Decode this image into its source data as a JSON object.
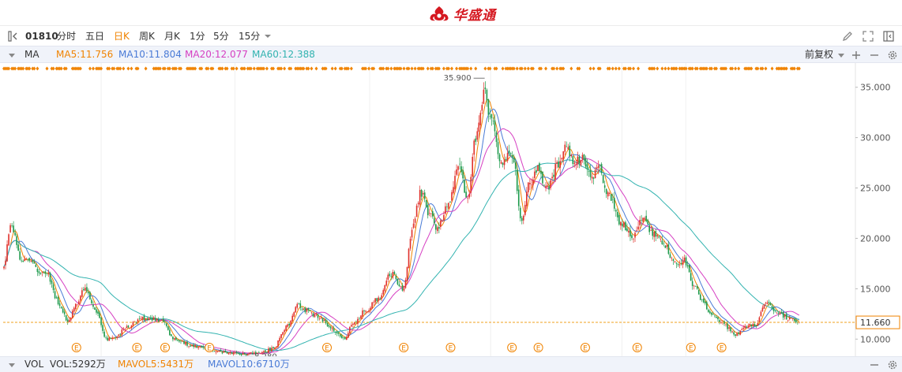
{
  "brand": {
    "name": "华盛通",
    "logo_icon": "flame-logo-icon",
    "color": "#d51820"
  },
  "toolbar": {
    "code": "01810",
    "periods": [
      "分时",
      "五日",
      "日K",
      "周K",
      "月K",
      "1分",
      "5分",
      "15分"
    ],
    "active_period": "日K",
    "icons": [
      "sidebar-toggle-icon",
      "draw-pen-icon",
      "fullscreen-icon",
      "panel-icon",
      "dropdown-caret-icon"
    ]
  },
  "ma_bar": {
    "label": "MA",
    "ma5": "MA5:11.756",
    "ma10": "MA10:11.804",
    "ma20": "MA20:12.077",
    "ma60": "MA60:12.388",
    "adjust": "前复权",
    "colors": {
      "ma5": "#f08300",
      "ma10": "#4a7bd6",
      "ma20": "#d63fc2",
      "ma60": "#32b3b0"
    }
  },
  "vol_bar": {
    "label": "VOL",
    "vol": "VOL:5292万",
    "mavol5": "MAVOL5:5431万",
    "mavol10": "MAVOL10:6710万",
    "colors": {
      "vol": "#333333",
      "mavol5": "#f08300",
      "mavol10": "#4a7bd6"
    }
  },
  "chart_data": {
    "type": "candlestick",
    "y_ticks": [
      "35.000",
      "30.000",
      "25.000",
      "20.000",
      "15.000",
      "10.000"
    ],
    "ylim": [
      8.3,
      37.4
    ],
    "current_price": "11.660",
    "current_value": 11.66,
    "max_label": "35.900",
    "max_value": 35.9,
    "min_label": "8.280",
    "min_value": 8.28,
    "event_marker": "E",
    "event_positions": [
      0.086,
      0.157,
      0.19,
      0.242,
      0.38,
      0.47,
      0.525,
      0.597,
      0.628,
      0.683,
      0.744,
      0.807,
      0.843
    ],
    "colors": {
      "up": "#e0302a",
      "down": "#1e9a4c",
      "ma5": "#f08300",
      "ma10": "#4a7bd6",
      "ma20": "#d63fc2",
      "ma60": "#32b3b0",
      "price_line": "#f0a01e",
      "axis_label_current": "#f08300"
    },
    "waypoints": [
      [
        0,
        17.5
      ],
      [
        0.008,
        21.5
      ],
      [
        0.02,
        18
      ],
      [
        0.05,
        16.5
      ],
      [
        0.065,
        13.5
      ],
      [
        0.075,
        11.8
      ],
      [
        0.085,
        13.5
      ],
      [
        0.095,
        15
      ],
      [
        0.11,
        12.5
      ],
      [
        0.12,
        10
      ],
      [
        0.13,
        10.2
      ],
      [
        0.145,
        11.2
      ],
      [
        0.16,
        12
      ],
      [
        0.17,
        12.1
      ],
      [
        0.185,
        11.8
      ],
      [
        0.2,
        10
      ],
      [
        0.22,
        9.4
      ],
      [
        0.24,
        9
      ],
      [
        0.26,
        8.7
      ],
      [
        0.28,
        8.5
      ],
      [
        0.3,
        8.6
      ],
      [
        0.315,
        9
      ],
      [
        0.335,
        11.5
      ],
      [
        0.345,
        13.5
      ],
      [
        0.355,
        12.8
      ],
      [
        0.37,
        12.2
      ],
      [
        0.385,
        11
      ],
      [
        0.4,
        10
      ],
      [
        0.41,
        11.5
      ],
      [
        0.425,
        12.8
      ],
      [
        0.44,
        14
      ],
      [
        0.455,
        16.5
      ],
      [
        0.47,
        15
      ],
      [
        0.48,
        21
      ],
      [
        0.49,
        24.5
      ],
      [
        0.5,
        22.5
      ],
      [
        0.51,
        21
      ],
      [
        0.52,
        23
      ],
      [
        0.535,
        27
      ],
      [
        0.545,
        24
      ],
      [
        0.555,
        30
      ],
      [
        0.565,
        34.5
      ],
      [
        0.573,
        31.5
      ],
      [
        0.585,
        27.5
      ],
      [
        0.598,
        28.5
      ],
      [
        0.608,
        21.5
      ],
      [
        0.618,
        25.5
      ],
      [
        0.628,
        26.8
      ],
      [
        0.638,
        24.8
      ],
      [
        0.652,
        27.5
      ],
      [
        0.66,
        29.5
      ],
      [
        0.67,
        27.5
      ],
      [
        0.68,
        28
      ],
      [
        0.69,
        26
      ],
      [
        0.7,
        26.8
      ],
      [
        0.71,
        24.5
      ],
      [
        0.725,
        21.5
      ],
      [
        0.74,
        20
      ],
      [
        0.75,
        22
      ],
      [
        0.762,
        20.5
      ],
      [
        0.775,
        19.5
      ],
      [
        0.79,
        17.5
      ],
      [
        0.8,
        17.8
      ],
      [
        0.81,
        15.5
      ],
      [
        0.82,
        14
      ],
      [
        0.83,
        12.5
      ],
      [
        0.845,
        11.5
      ],
      [
        0.86,
        10.5
      ],
      [
        0.875,
        11.3
      ],
      [
        0.885,
        11.5
      ],
      [
        0.895,
        13.7
      ],
      [
        0.91,
        12.5
      ],
      [
        0.925,
        12
      ],
      [
        0.935,
        11.66
      ]
    ]
  }
}
